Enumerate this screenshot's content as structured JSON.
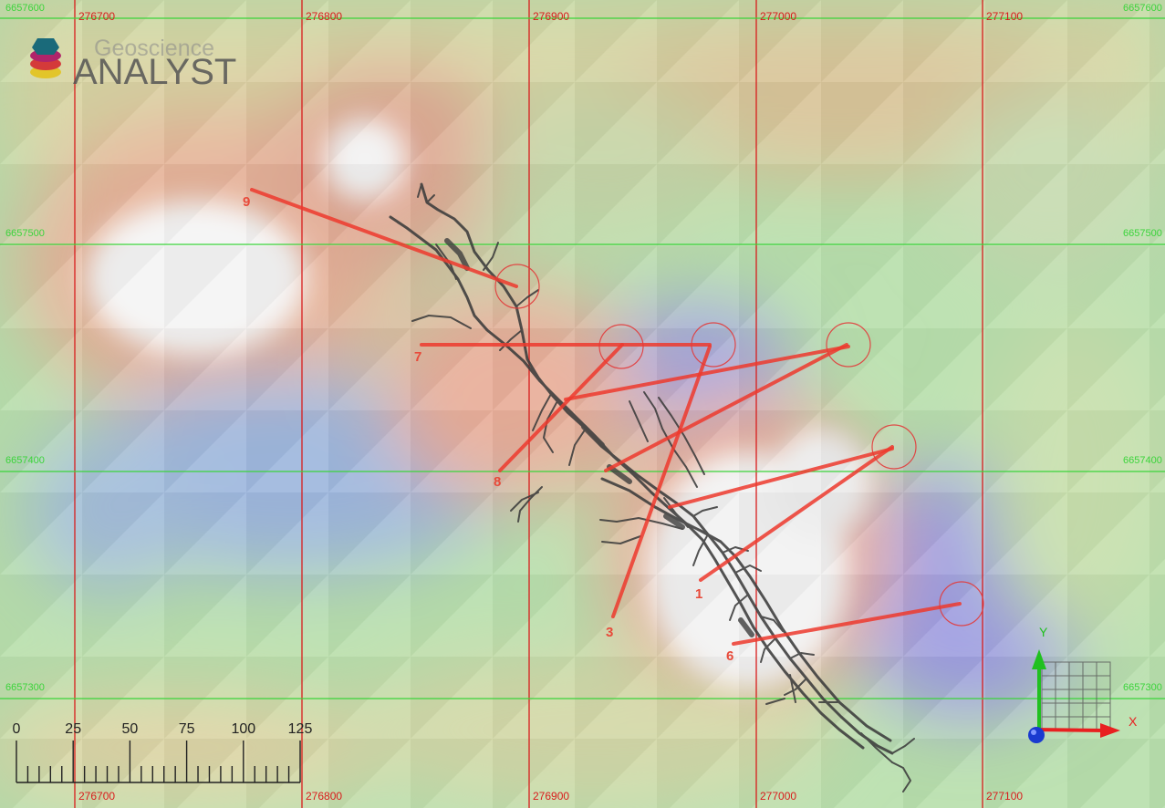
{
  "logo": {
    "line1": "Geoscience",
    "line2": "ANALYST"
  },
  "grid": {
    "eastings": [
      "276700",
      "276800",
      "276900",
      "277000",
      "277100"
    ],
    "northings_left": [
      "6657600",
      "6657500",
      "6657400",
      "6657300"
    ],
    "northings_right": [
      "6657600",
      "6657500",
      "6657400",
      "6657300"
    ]
  },
  "drillholes": [
    {
      "id": "9"
    },
    {
      "id": "7"
    },
    {
      "id": "8"
    },
    {
      "id": "3"
    },
    {
      "id": "1"
    },
    {
      "id": "6"
    },
    {
      "id": ""
    },
    {
      "id": ""
    },
    {
      "id": ""
    }
  ],
  "scale_bar": {
    "labels": [
      "0",
      "25",
      "50",
      "75",
      "100",
      "125"
    ]
  },
  "axes": {
    "x_label": "X",
    "y_label": "Y"
  },
  "colors": {
    "grid_easting": "#d81c1c",
    "grid_northing": "#3bd43b",
    "drillhole": "#ee3a2e",
    "tunnel": "#3c3c3c",
    "axis_x": "#e82020",
    "axis_y": "#20c020",
    "axis_origin": "#1a3ad0"
  }
}
